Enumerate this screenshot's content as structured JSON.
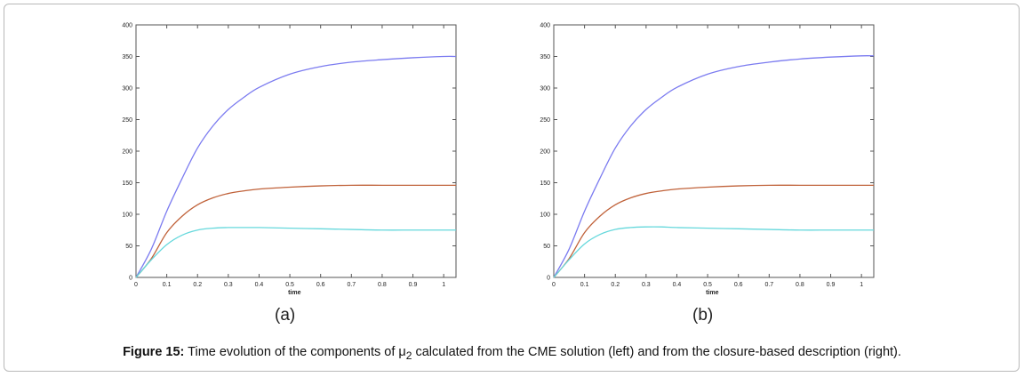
{
  "panels": [
    {
      "label": "(a)"
    },
    {
      "label": "(b)"
    }
  ],
  "caption": {
    "label": "Figure 15:",
    "text_before": "Time evolution of the components of μ",
    "subscript": "2",
    "text_after": " calculated from the CME solution (left) and from the closure-based description (right)."
  },
  "chart_data": [
    {
      "type": "line",
      "title": "",
      "xlabel": "time",
      "ylabel": "",
      "xlim": [
        0,
        1.04
      ],
      "ylim": [
        0,
        400
      ],
      "xticks": [
        "0",
        "0.1",
        "0.2",
        "0.3",
        "0.4",
        "0.5",
        "0.6",
        "0.7",
        "0.8",
        "0.9",
        "1"
      ],
      "yticks": [
        "0",
        "50",
        "100",
        "150",
        "200",
        "250",
        "300",
        "350",
        "400"
      ],
      "grid": false,
      "x": [
        0,
        0.05,
        0.1,
        0.15,
        0.2,
        0.25,
        0.3,
        0.35,
        0.4,
        0.5,
        0.6,
        0.7,
        0.8,
        0.9,
        1.0,
        1.04
      ],
      "series": [
        {
          "color": "#7b7bf0",
          "values": [
            0,
            45,
            105,
            157,
            205,
            240,
            266,
            285,
            301,
            322,
            334,
            341,
            345,
            348,
            350,
            350
          ]
        },
        {
          "color": "#c0623a",
          "values": [
            0,
            30,
            71,
            97,
            115,
            126,
            133,
            137,
            140,
            143,
            145,
            146,
            146,
            146,
            146,
            146
          ]
        },
        {
          "color": "#66d8dc",
          "values": [
            0,
            28,
            52,
            67,
            75,
            78,
            79,
            79,
            79,
            78,
            77,
            76,
            75,
            75,
            75,
            75
          ]
        }
      ]
    },
    {
      "type": "line",
      "title": "",
      "xlabel": "time",
      "ylabel": "",
      "xlim": [
        0,
        1.04
      ],
      "ylim": [
        0,
        400
      ],
      "xticks": [
        "0",
        "0.1",
        "0.2",
        "0.3",
        "0.4",
        "0.5",
        "0.6",
        "0.7",
        "0.8",
        "0.9",
        "1"
      ],
      "yticks": [
        "0",
        "50",
        "100",
        "150",
        "200",
        "250",
        "300",
        "350",
        "400"
      ],
      "grid": false,
      "x": [
        0,
        0.05,
        0.1,
        0.15,
        0.2,
        0.25,
        0.3,
        0.35,
        0.4,
        0.5,
        0.6,
        0.7,
        0.8,
        0.9,
        1.0,
        1.04
      ],
      "series": [
        {
          "color": "#7b7bf0",
          "values": [
            0,
            45,
            105,
            157,
            205,
            240,
            266,
            285,
            301,
            322,
            334,
            341,
            346,
            349,
            351,
            351
          ]
        },
        {
          "color": "#c0623a",
          "values": [
            0,
            30,
            71,
            97,
            115,
            126,
            133,
            137,
            140,
            143,
            145,
            146,
            146,
            146,
            146,
            146
          ]
        },
        {
          "color": "#66d8dc",
          "values": [
            0,
            28,
            53,
            68,
            76,
            79,
            80,
            80,
            79,
            78,
            77,
            76,
            75,
            75,
            75,
            75
          ]
        }
      ]
    }
  ]
}
